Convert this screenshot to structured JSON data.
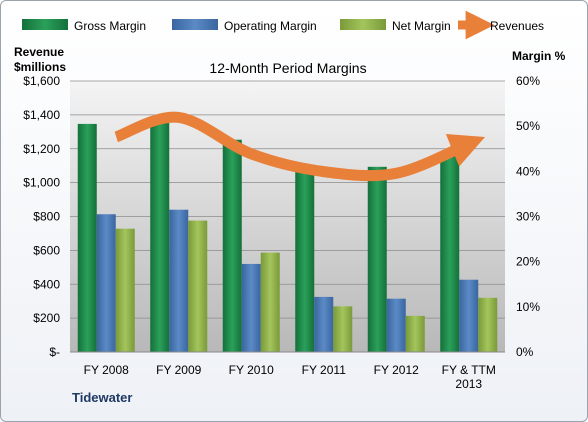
{
  "chart_data": {
    "type": "bar",
    "title": "12-Month Period Margins",
    "company": "Tidewater",
    "categories": [
      [
        "FY 2008"
      ],
      [
        "FY 2009"
      ],
      [
        "FY 2010"
      ],
      [
        "FY 2011"
      ],
      [
        "FY 2012"
      ],
      [
        "FY & TTM",
        "2013"
      ]
    ],
    "left_axis": {
      "label_line1": "Revenue",
      "label_line2": "$millions",
      "ticks": [
        "$-",
        "$200",
        "$400",
        "$600",
        "$800",
        "$1,000",
        "$1,200",
        "$1,400",
        "$1,600"
      ],
      "range": [
        0,
        1600
      ]
    },
    "right_axis": {
      "label": "Margin %",
      "ticks": [
        "0%",
        "10%",
        "20%",
        "30%",
        "40%",
        "50%",
        "60%"
      ],
      "range": [
        0,
        60
      ]
    },
    "series": [
      {
        "name": "Gross Margin",
        "kind": "bar",
        "axis": "right",
        "color": "#1e8b4b",
        "values": [
          50.5,
          51.0,
          47.0,
          40.5,
          41.0,
          43.5
        ]
      },
      {
        "name": "Operating Margin",
        "kind": "bar",
        "axis": "right",
        "color": "#4a78b5",
        "values": [
          30.5,
          31.5,
          19.5,
          12.2,
          11.8,
          16.0
        ]
      },
      {
        "name": "Net Margin",
        "kind": "bar",
        "axis": "right",
        "color": "#8fb04a",
        "values": [
          27.3,
          29.1,
          22.0,
          10.1,
          8.0,
          12.0
        ]
      },
      {
        "name": "Revenues",
        "kind": "line",
        "axis": "left",
        "color": "#e8803a",
        "values": [
          1270,
          1385,
          1170,
          1065,
          1055,
          1230
        ]
      }
    ],
    "grid": true,
    "legend": "top"
  }
}
